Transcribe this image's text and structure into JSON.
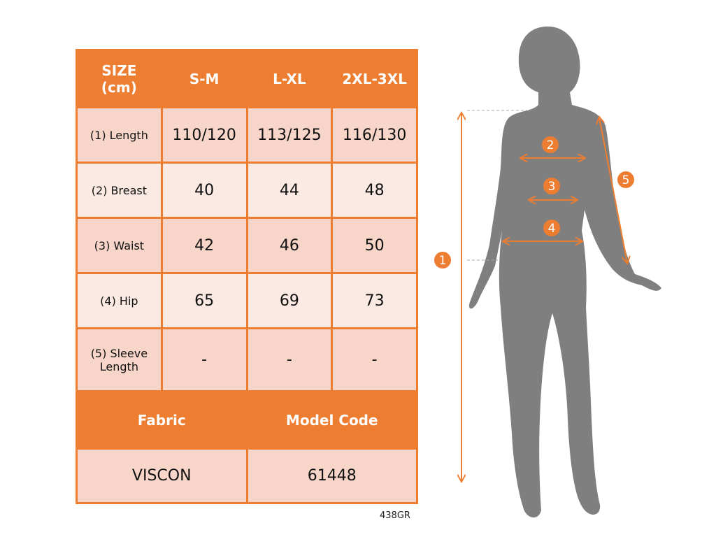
{
  "table": {
    "header": [
      "SIZE\n(cm)",
      "S-M",
      "L-XL",
      "2XL-3XL"
    ],
    "header_line1": "SIZE",
    "header_line2": "(cm)",
    "rows": [
      {
        "label": "(1) Length",
        "values": [
          "110/120",
          "113/125",
          "116/130"
        ]
      },
      {
        "label": "(2) Breast",
        "values": [
          "40",
          "44",
          "48"
        ]
      },
      {
        "label": "(3) Waist",
        "values": [
          "42",
          "46",
          "50"
        ]
      },
      {
        "label": "(4) Hip",
        "values": [
          "65",
          "69",
          "73"
        ]
      },
      {
        "label_line1": "(5) Sleeve",
        "label_line2": "Length",
        "values": [
          "-",
          "-",
          "-"
        ]
      }
    ],
    "fabric_label": "Fabric",
    "model_code_label": "Model Code",
    "fabric": "VISCON",
    "model_code": "61448"
  },
  "code_label": "438GR",
  "figure": {
    "markers": [
      "1",
      "2",
      "3",
      "4",
      "5"
    ]
  },
  "colors": {
    "accent": "#ed7d31",
    "silhouette": "#7f7f7f",
    "row_dark": "#f7d6c9",
    "row_light": "#fbeae3"
  }
}
